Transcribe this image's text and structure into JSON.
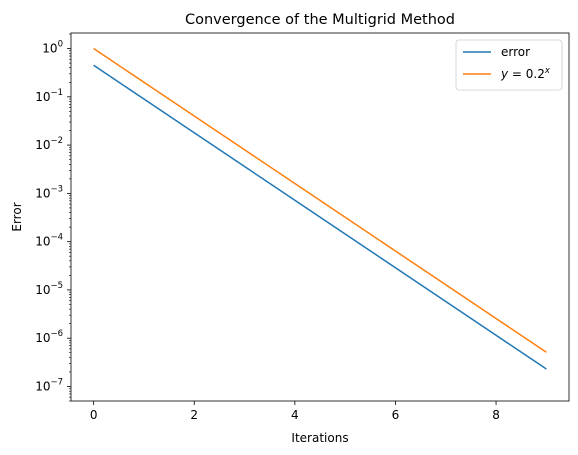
{
  "chart_data": {
    "type": "line",
    "title": "Convergence of the Multigrid Method",
    "xlabel": "Iterations",
    "ylabel": "Error",
    "xlim": [
      -0.45,
      9.45
    ],
    "ylim": [
      5e-08,
      2.1
    ],
    "yscale": "log",
    "x_ticks": [
      0,
      2,
      4,
      6,
      8
    ],
    "y_ticks": [
      {
        "value": 1,
        "mantissa": "10",
        "exp": "0"
      },
      {
        "value": 0.1,
        "mantissa": "10",
        "exp": "−1"
      },
      {
        "value": 0.01,
        "mantissa": "10",
        "exp": "−2"
      },
      {
        "value": 0.001,
        "mantissa": "10",
        "exp": "−3"
      },
      {
        "value": 0.0001,
        "mantissa": "10",
        "exp": "−4"
      },
      {
        "value": 1e-05,
        "mantissa": "10",
        "exp": "−5"
      },
      {
        "value": 1e-06,
        "mantissa": "10",
        "exp": "−6"
      },
      {
        "value": 1e-07,
        "mantissa": "10",
        "exp": "−7"
      }
    ],
    "grid": false,
    "legend_position": "top-right",
    "series": [
      {
        "name": "error",
        "color": "#1f77b4",
        "x": [
          0,
          1,
          2,
          3,
          4,
          5,
          6,
          7,
          8,
          9
        ],
        "y": [
          0.45,
          0.09,
          0.018,
          0.0036,
          0.00072,
          0.000144,
          2.88e-05,
          5.76e-06,
          1.152e-06,
          2.3e-07
        ]
      },
      {
        "name": "y = 0.2^x",
        "legend_parts": {
          "lhs": "y",
          "eq": " = 0.2",
          "exp": "x"
        },
        "color": "#ff7f0e",
        "x": [
          0,
          1,
          2,
          3,
          4,
          5,
          6,
          7,
          8,
          9
        ],
        "y": [
          1,
          0.2,
          0.04,
          0.008,
          0.0016,
          0.00032,
          6.4e-05,
          1.28e-05,
          2.56e-06,
          5.12e-07
        ]
      }
    ]
  }
}
